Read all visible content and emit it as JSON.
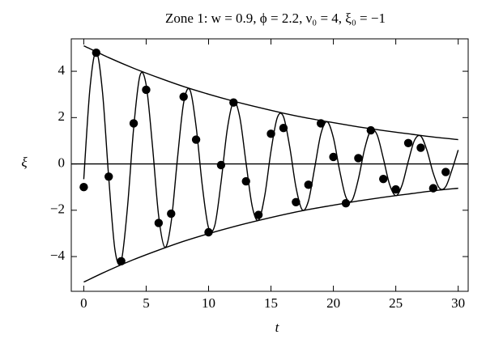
{
  "chart_data": {
    "type": "line",
    "title": "Zone 1: w = 0.9, ϕ = 2.2, ν₀ = 4, ξ₀ = −1",
    "xlabel": "t",
    "ylabel": "ξ",
    "xlim": [
      -1,
      30.8
    ],
    "ylim": [
      -5.5,
      5.4
    ],
    "xticks": [
      0,
      5,
      10,
      15,
      20,
      25,
      30
    ],
    "yticks": [
      {
        "value": -4,
        "label": "−4"
      },
      {
        "value": -2,
        "label": "−2"
      },
      0,
      2,
      4
    ],
    "hlines": [
      0
    ],
    "series": [
      {
        "type": "line",
        "color": "#000000",
        "x": [
          0,
          0.5,
          1,
          1.5,
          2,
          2.5,
          3,
          3.5,
          4,
          4.5,
          5,
          5.5,
          6,
          6.5,
          7,
          7.5,
          8,
          8.5,
          9,
          9.5,
          10,
          10.5,
          11,
          11.5,
          12,
          12.5,
          13,
          13.5,
          14,
          14.5,
          15,
          15.5,
          16,
          16.5,
          17,
          17.5,
          18,
          18.5,
          19,
          19.5,
          20,
          20.5,
          21,
          21.5,
          22,
          22.5,
          23,
          23.5,
          24,
          24.5,
          25,
          25.5,
          26,
          26.5,
          27,
          27.5,
          28,
          28.5,
          29,
          29.5,
          30
        ],
        "values": [
          -0.66,
          3.28,
          4.84,
          3.11,
          -0.59,
          -3.71,
          -4.21,
          -1.89,
          1.56,
          3.81,
          3.41,
          0.81,
          -2.24,
          -3.6,
          -2.52,
          0.19,
          2.63,
          3.2,
          1.62,
          -0.95,
          -2.76,
          -2.65,
          -0.79,
          1.5,
          2.68,
          2.02,
          0.05,
          -1.84,
          -2.43,
          -1.37,
          0.55,
          1.99,
          2.04,
          0.74,
          -1.0,
          -1.98,
          -1.6,
          -0.17,
          1.3,
          1.82,
          1.13,
          -0.28,
          -1.43,
          -1.57,
          -0.66,
          0.64,
          1.45,
          1.26,
          0.24,
          -0.88,
          -1.37,
          -0.92,
          0.11,
          1.02,
          1.2,
          0.58,
          -0.4,
          -1.05,
          -0.98,
          -0.26,
          0.6
        ]
      },
      {
        "type": "line",
        "color": "#000000",
        "x": [
          0,
          2,
          4,
          6,
          8,
          10,
          12,
          14,
          16,
          18,
          20,
          22,
          24,
          26,
          28,
          30
        ],
        "values": [
          5.1,
          4.59,
          4.13,
          3.72,
          3.34,
          3.01,
          2.71,
          2.44,
          2.19,
          1.97,
          1.78,
          1.6,
          1.44,
          1.3,
          1.16,
          1.05
        ]
      },
      {
        "type": "line",
        "color": "#000000",
        "x": [
          0,
          2,
          4,
          6,
          8,
          10,
          12,
          14,
          16,
          18,
          20,
          22,
          24,
          26,
          28,
          30
        ],
        "values": [
          -5.1,
          -4.59,
          -4.13,
          -3.72,
          -3.34,
          -3.01,
          -2.71,
          -2.44,
          -2.19,
          -1.97,
          -1.78,
          -1.6,
          -1.44,
          -1.3,
          -1.16,
          -1.05
        ]
      },
      {
        "type": "scatter",
        "color": "#000000",
        "x": [
          0,
          1,
          2,
          3,
          4,
          5,
          6,
          7,
          8,
          9,
          10,
          11,
          12,
          13,
          14,
          15,
          16,
          17,
          18,
          19,
          20,
          21,
          22,
          23,
          24,
          25,
          26,
          27,
          28,
          29
        ],
        "values": [
          -1.0,
          4.8,
          -0.55,
          -4.2,
          1.75,
          3.2,
          -2.55,
          -2.15,
          2.9,
          1.05,
          -2.95,
          -0.05,
          2.65,
          -0.75,
          -2.2,
          1.3,
          1.55,
          -1.65,
          -0.9,
          1.75,
          0.3,
          -1.7,
          0.25,
          1.45,
          -0.65,
          -1.1,
          0.9,
          0.7,
          -1.05,
          -0.35
        ]
      }
    ]
  }
}
